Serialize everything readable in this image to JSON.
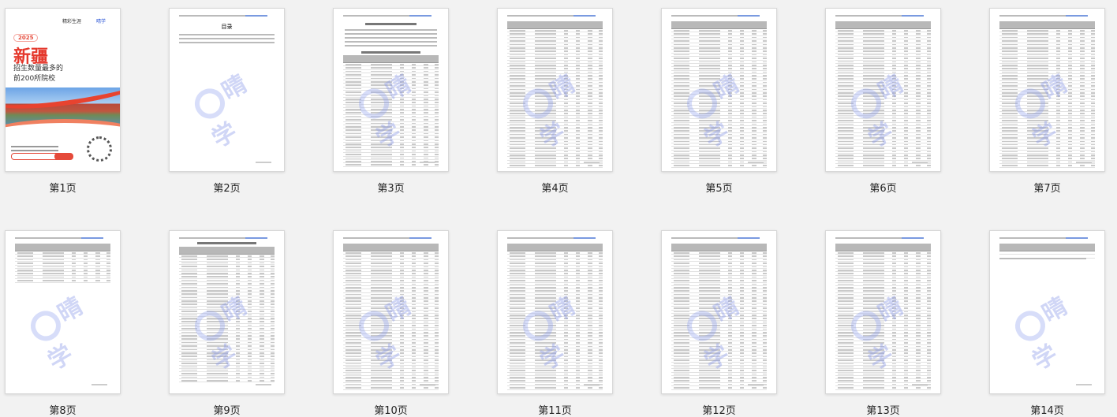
{
  "cover": {
    "year": "2025",
    "title": "新疆",
    "subtitle_line1": "招生数量最多的",
    "subtitle_line2": "前200所院校",
    "logo1": "精彩生涯",
    "logo2": "晴学"
  },
  "watermark": "晴学",
  "toc_title": "目录",
  "pages": [
    {
      "label": "第1页",
      "kind": "cover"
    },
    {
      "label": "第2页",
      "kind": "toc"
    },
    {
      "label": "第3页",
      "kind": "intro"
    },
    {
      "label": "第4页",
      "kind": "table"
    },
    {
      "label": "第5页",
      "kind": "table"
    },
    {
      "label": "第6页",
      "kind": "table"
    },
    {
      "label": "第7页",
      "kind": "table"
    },
    {
      "label": "第8页",
      "kind": "short"
    },
    {
      "label": "第9页",
      "kind": "table2"
    },
    {
      "label": "第10页",
      "kind": "table"
    },
    {
      "label": "第11页",
      "kind": "table"
    },
    {
      "label": "第12页",
      "kind": "table"
    },
    {
      "label": "第13页",
      "kind": "table"
    },
    {
      "label": "第14页",
      "kind": "note"
    }
  ]
}
